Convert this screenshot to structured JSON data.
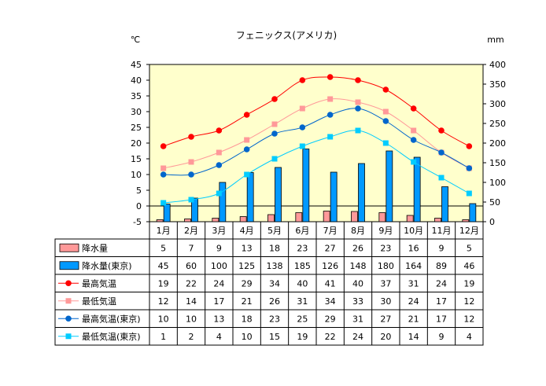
{
  "chart_data": {
    "type": "bar",
    "title": "フェニックス(アメリカ)",
    "y_left_unit": "℃",
    "y_right_unit": "mm",
    "ylim_left": [
      -5,
      45
    ],
    "ylim_right": [
      0,
      400
    ],
    "y_left_ticks": [
      "45",
      "40",
      "35",
      "30",
      "25",
      "20",
      "15",
      "10",
      "5",
      "0",
      "-5"
    ],
    "y_right_ticks": [
      "400",
      "350",
      "300",
      "250",
      "200",
      "150",
      "100",
      "50",
      "0"
    ],
    "categories": [
      "1月",
      "2月",
      "3月",
      "4月",
      "5月",
      "6月",
      "7月",
      "8月",
      "9月",
      "10月",
      "11月",
      "12月"
    ],
    "grid": false,
    "legend_placement": "data-table-below",
    "series": [
      {
        "name": "降水量",
        "kind": "bar",
        "axis": "right",
        "color": "#ff9999",
        "values": [
          5,
          7,
          9,
          13,
          18,
          23,
          27,
          26,
          23,
          16,
          9,
          5
        ]
      },
      {
        "name": "降水量(東京)",
        "kind": "bar",
        "axis": "right",
        "color": "#0099ff",
        "values": [
          45,
          60,
          100,
          125,
          138,
          185,
          126,
          148,
          180,
          164,
          89,
          46
        ]
      },
      {
        "name": "最高気温",
        "kind": "line",
        "axis": "left",
        "color": "#ff0000",
        "marker": "circle",
        "values": [
          19,
          22,
          24,
          29,
          34,
          40,
          41,
          40,
          37,
          31,
          24,
          19
        ]
      },
      {
        "name": "最低気温",
        "kind": "line",
        "axis": "left",
        "color": "#ff9999",
        "marker": "square",
        "values": [
          12,
          14,
          17,
          21,
          26,
          31,
          34,
          33,
          30,
          24,
          17,
          12
        ]
      },
      {
        "name": "最高気温(東京)",
        "kind": "line",
        "axis": "left",
        "color": "#0066cc",
        "marker": "circle",
        "values": [
          10,
          10,
          13,
          18,
          23,
          25,
          29,
          31,
          27,
          21,
          17,
          12
        ]
      },
      {
        "name": "最低気温(東京)",
        "kind": "line",
        "axis": "left",
        "color": "#00ccff",
        "marker": "square",
        "values": [
          1,
          2,
          4,
          10,
          15,
          19,
          22,
          24,
          20,
          14,
          9,
          4
        ]
      }
    ]
  }
}
